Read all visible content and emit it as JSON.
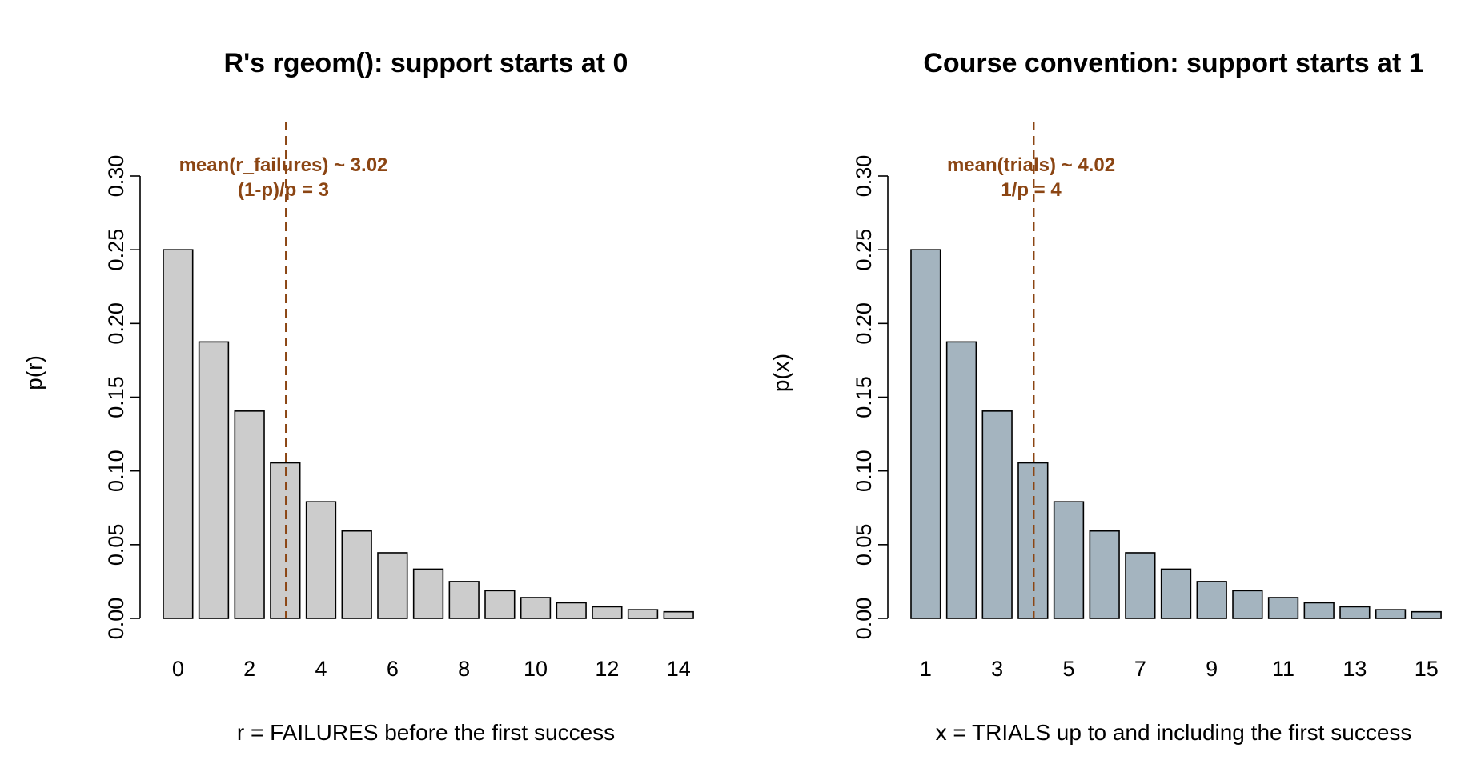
{
  "chart_data": [
    {
      "type": "bar",
      "title": "R's rgeom(): support starts at 0",
      "xlabel": "r = FAILURES before the first success",
      "ylabel": "p(r)",
      "categories": [
        "0",
        "1",
        "2",
        "3",
        "4",
        "5",
        "6",
        "7",
        "8",
        "9",
        "10",
        "11",
        "12",
        "13",
        "14"
      ],
      "values": [
        0.25,
        0.1875,
        0.1406,
        0.1055,
        0.0791,
        0.0593,
        0.0445,
        0.0334,
        0.025,
        0.0188,
        0.0141,
        0.0106,
        0.0079,
        0.0059,
        0.0045
      ],
      "x_tick_labels": [
        "0",
        "2",
        "4",
        "6",
        "8",
        "10",
        "12",
        "14"
      ],
      "y_ticks": [
        "0.00",
        "0.05",
        "0.10",
        "0.15",
        "0.20",
        "0.25",
        "0.30"
      ],
      "ylim": [
        0,
        0.3
      ],
      "bar_color": "#cccccc",
      "mean_line": {
        "x": 3.02,
        "color": "#8b4513",
        "style": "dashed"
      },
      "annotations": [
        "mean(r_failures) ~ 3.02",
        "(1-p)/p = 3"
      ],
      "annotation_color": "#8b4513",
      "grid": false
    },
    {
      "type": "bar",
      "title": "Course convention: support starts at 1",
      "xlabel": "x = TRIALS up to and including the first success",
      "ylabel": "p(x)",
      "categories": [
        "1",
        "2",
        "3",
        "4",
        "5",
        "6",
        "7",
        "8",
        "9",
        "10",
        "11",
        "12",
        "13",
        "14",
        "15"
      ],
      "values": [
        0.25,
        0.1875,
        0.1406,
        0.1055,
        0.0791,
        0.0593,
        0.0445,
        0.0334,
        0.025,
        0.0188,
        0.0141,
        0.0106,
        0.0079,
        0.0059,
        0.0045
      ],
      "x_tick_labels": [
        "1",
        "3",
        "5",
        "7",
        "9",
        "11",
        "13",
        "15"
      ],
      "y_ticks": [
        "0.00",
        "0.05",
        "0.10",
        "0.15",
        "0.20",
        "0.25",
        "0.30"
      ],
      "ylim": [
        0,
        0.3
      ],
      "bar_color": "#a4b4bf",
      "mean_line": {
        "x": 4.02,
        "color": "#8b4513",
        "style": "dashed"
      },
      "annotations": [
        "mean(trials) ~ 4.02",
        "1/p = 4"
      ],
      "annotation_color": "#8b4513",
      "grid": false
    }
  ]
}
